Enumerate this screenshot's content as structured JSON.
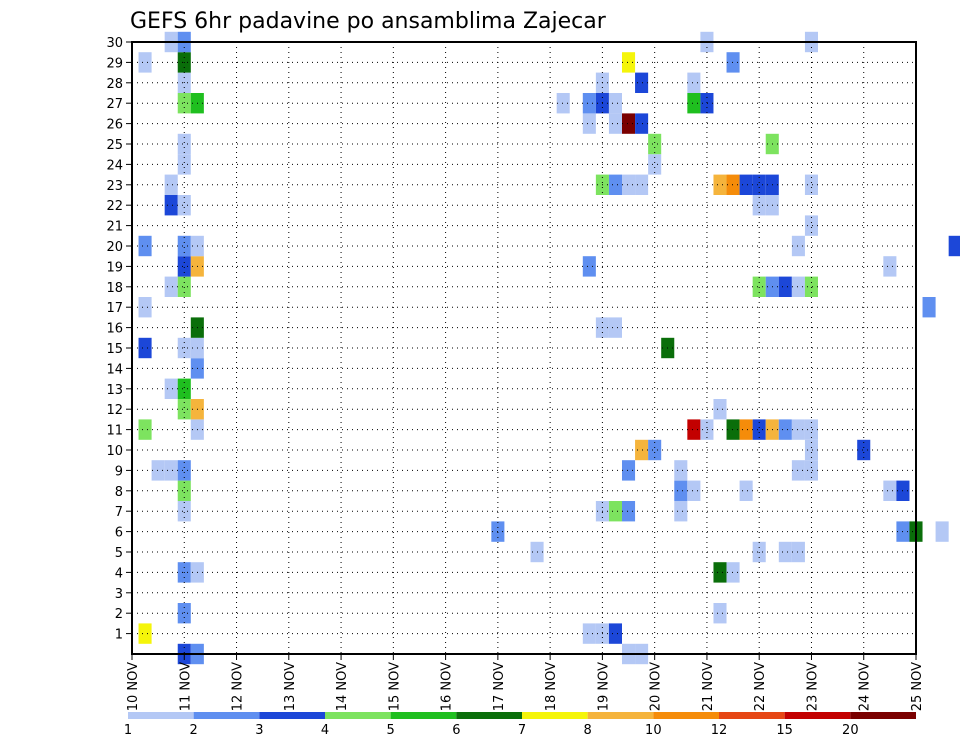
{
  "chart_data": {
    "type": "heatmap",
    "title": "GEFS 6hr padavine po ansamblima Zajecar",
    "x_labels": [
      "10 NOV",
      "11 NOV",
      "12 NOV",
      "13 NOV",
      "14 NOV",
      "15 NOV",
      "16 NOV",
      "17 NOV",
      "18 NOV",
      "19 NOV",
      "20 NOV",
      "21 NOV",
      "22 NOV",
      "23 NOV",
      "24 NOV",
      "25 NOV"
    ],
    "y_labels": [
      "1",
      "2",
      "3",
      "4",
      "5",
      "6",
      "7",
      "8",
      "9",
      "10",
      "11",
      "12",
      "13",
      "14",
      "15",
      "16",
      "17",
      "18",
      "19",
      "20",
      "21",
      "22",
      "23",
      "24",
      "25",
      "26",
      "27",
      "28",
      "29",
      "30"
    ],
    "x_range": [
      0,
      15
    ],
    "y_range": [
      0,
      30
    ],
    "grid": true,
    "colorbar": {
      "labels": [
        "1",
        "2",
        "3",
        "4",
        "5",
        "6",
        "7",
        "8",
        "10",
        "12",
        "15",
        "20"
      ],
      "colors": [
        "#b4c8f5",
        "#5f8ff0",
        "#1c47d8",
        "#7de35f",
        "#1fbf1f",
        "#0a6e0a",
        "#f5f50a",
        "#f5b43c",
        "#f58c0a",
        "#e64614",
        "#c30000",
        "#7a0000"
      ]
    },
    "cells": [
      {
        "m": 1,
        "t": 0.25,
        "c": 6
      },
      {
        "m": 1,
        "t": 8.75,
        "c": 0
      },
      {
        "m": 1,
        "t": 9.0,
        "c": 0
      },
      {
        "m": 1,
        "t": 9.25,
        "c": 2
      },
      {
        "m": 0,
        "t": 9.5,
        "c": 0
      },
      {
        "m": 0,
        "t": 9.75,
        "c": 0
      },
      {
        "m": 0,
        "t": 1.0,
        "c": 2
      },
      {
        "m": 0,
        "t": 1.25,
        "c": 1
      },
      {
        "m": 2,
        "t": 1.0,
        "c": 1
      },
      {
        "m": 2,
        "t": 11.25,
        "c": 0
      },
      {
        "m": 4,
        "t": 1.0,
        "c": 1
      },
      {
        "m": 4,
        "t": 1.25,
        "c": 0
      },
      {
        "m": 4,
        "t": 11.25,
        "c": 5
      },
      {
        "m": 4,
        "t": 11.5,
        "c": 0
      },
      {
        "m": 5,
        "t": 7.75,
        "c": 0
      },
      {
        "m": 5,
        "t": 12.0,
        "c": 0
      },
      {
        "m": 5,
        "t": 12.5,
        "c": 0
      },
      {
        "m": 5,
        "t": 12.75,
        "c": 0
      },
      {
        "m": 6,
        "t": 7.0,
        "c": 1
      },
      {
        "m": 6,
        "t": 14.75,
        "c": 1
      },
      {
        "m": 6,
        "t": 15.0,
        "c": 5
      },
      {
        "m": 6,
        "t": 15.5,
        "c": 0
      },
      {
        "m": 7,
        "t": 1.0,
        "c": 0
      },
      {
        "m": 7,
        "t": 9.0,
        "c": 0
      },
      {
        "m": 7,
        "t": 9.25,
        "c": 3
      },
      {
        "m": 7,
        "t": 9.5,
        "c": 1
      },
      {
        "m": 7,
        "t": 10.5,
        "c": 0
      },
      {
        "m": 8,
        "t": 1.0,
        "c": 3
      },
      {
        "m": 8,
        "t": 10.5,
        "c": 1
      },
      {
        "m": 8,
        "t": 10.75,
        "c": 0
      },
      {
        "m": 8,
        "t": 11.75,
        "c": 0
      },
      {
        "m": 8,
        "t": 14.5,
        "c": 0
      },
      {
        "m": 8,
        "t": 14.75,
        "c": 2
      },
      {
        "m": 9,
        "t": 0.5,
        "c": 0
      },
      {
        "m": 9,
        "t": 0.75,
        "c": 0
      },
      {
        "m": 9,
        "t": 1.0,
        "c": 1
      },
      {
        "m": 9,
        "t": 9.5,
        "c": 1
      },
      {
        "m": 9,
        "t": 10.5,
        "c": 0
      },
      {
        "m": 9,
        "t": 12.75,
        "c": 0
      },
      {
        "m": 9,
        "t": 13.0,
        "c": 0
      },
      {
        "m": 10,
        "t": 9.75,
        "c": 7
      },
      {
        "m": 10,
        "t": 10.0,
        "c": 1
      },
      {
        "m": 10,
        "t": 13.0,
        "c": 0
      },
      {
        "m": 10,
        "t": 14.0,
        "c": 2
      },
      {
        "m": 11,
        "t": 0.25,
        "c": 3
      },
      {
        "m": 11,
        "t": 1.25,
        "c": 0
      },
      {
        "m": 11,
        "t": 10.75,
        "c": 10
      },
      {
        "m": 11,
        "t": 11.0,
        "c": 0
      },
      {
        "m": 11,
        "t": 11.5,
        "c": 5
      },
      {
        "m": 11,
        "t": 11.75,
        "c": 8
      },
      {
        "m": 11,
        "t": 12.0,
        "c": 2
      },
      {
        "m": 11,
        "t": 12.25,
        "c": 7
      },
      {
        "m": 11,
        "t": 12.5,
        "c": 1
      },
      {
        "m": 11,
        "t": 12.75,
        "c": 0
      },
      {
        "m": 11,
        "t": 13.0,
        "c": 0
      },
      {
        "m": 12,
        "t": 1.0,
        "c": 3
      },
      {
        "m": 12,
        "t": 1.25,
        "c": 7
      },
      {
        "m": 12,
        "t": 11.25,
        "c": 0
      },
      {
        "m": 13,
        "t": 0.75,
        "c": 0
      },
      {
        "m": 13,
        "t": 1.0,
        "c": 4
      },
      {
        "m": 14,
        "t": 1.25,
        "c": 1
      },
      {
        "m": 15,
        "t": 0.25,
        "c": 2
      },
      {
        "m": 15,
        "t": 1.0,
        "c": 0
      },
      {
        "m": 15,
        "t": 1.25,
        "c": 0
      },
      {
        "m": 15,
        "t": 10.25,
        "c": 5
      },
      {
        "m": 16,
        "t": 9.0,
        "c": 0
      },
      {
        "m": 16,
        "t": 9.25,
        "c": 0
      },
      {
        "m": 16,
        "t": 1.25,
        "c": 5
      },
      {
        "m": 17,
        "t": 0.25,
        "c": 0
      },
      {
        "m": 17,
        "t": 15.25,
        "c": 1
      },
      {
        "m": 18,
        "t": 0.75,
        "c": 0
      },
      {
        "m": 18,
        "t": 1.0,
        "c": 3
      },
      {
        "m": 18,
        "t": 12.0,
        "c": 3
      },
      {
        "m": 18,
        "t": 12.25,
        "c": 1
      },
      {
        "m": 18,
        "t": 12.5,
        "c": 2
      },
      {
        "m": 18,
        "t": 12.75,
        "c": 0
      },
      {
        "m": 18,
        "t": 13.0,
        "c": 3
      },
      {
        "m": 19,
        "t": 1.0,
        "c": 2
      },
      {
        "m": 19,
        "t": 1.25,
        "c": 7
      },
      {
        "m": 19,
        "t": 8.75,
        "c": 1
      },
      {
        "m": 19,
        "t": 14.5,
        "c": 0
      },
      {
        "m": 20,
        "t": 0.25,
        "c": 1
      },
      {
        "m": 20,
        "t": 1.0,
        "c": 1
      },
      {
        "m": 20,
        "t": 1.25,
        "c": 0
      },
      {
        "m": 20,
        "t": 12.75,
        "c": 0
      },
      {
        "m": 20,
        "t": 15.75,
        "c": 2
      },
      {
        "m": 21,
        "t": 13.0,
        "c": 0
      },
      {
        "m": 22,
        "t": 0.75,
        "c": 2
      },
      {
        "m": 22,
        "t": 1.0,
        "c": 0
      },
      {
        "m": 22,
        "t": 12.0,
        "c": 0
      },
      {
        "m": 22,
        "t": 12.25,
        "c": 0
      },
      {
        "m": 23,
        "t": 0.75,
        "c": 0
      },
      {
        "m": 23,
        "t": 9.0,
        "c": 3
      },
      {
        "m": 23,
        "t": 9.25,
        "c": 1
      },
      {
        "m": 23,
        "t": 9.5,
        "c": 0
      },
      {
        "m": 23,
        "t": 9.75,
        "c": 0
      },
      {
        "m": 23,
        "t": 11.25,
        "c": 7
      },
      {
        "m": 23,
        "t": 11.5,
        "c": 8
      },
      {
        "m": 23,
        "t": 11.75,
        "c": 2
      },
      {
        "m": 23,
        "t": 12.0,
        "c": 2
      },
      {
        "m": 23,
        "t": 12.25,
        "c": 2
      },
      {
        "m": 23,
        "t": 13.0,
        "c": 0
      },
      {
        "m": 24,
        "t": 1.0,
        "c": 0
      },
      {
        "m": 24,
        "t": 10.0,
        "c": 0
      },
      {
        "m": 25,
        "t": 1.0,
        "c": 0
      },
      {
        "m": 25,
        "t": 10.0,
        "c": 3
      },
      {
        "m": 25,
        "t": 12.25,
        "c": 3
      },
      {
        "m": 26,
        "t": 8.75,
        "c": 0
      },
      {
        "m": 26,
        "t": 9.25,
        "c": 0
      },
      {
        "m": 26,
        "t": 9.5,
        "c": 11
      },
      {
        "m": 26,
        "t": 9.75,
        "c": 2
      },
      {
        "m": 27,
        "t": 1.0,
        "c": 3
      },
      {
        "m": 27,
        "t": 1.25,
        "c": 4
      },
      {
        "m": 27,
        "t": 8.25,
        "c": 0
      },
      {
        "m": 27,
        "t": 8.75,
        "c": 1
      },
      {
        "m": 27,
        "t": 9.0,
        "c": 2
      },
      {
        "m": 27,
        "t": 9.25,
        "c": 0
      },
      {
        "m": 27,
        "t": 10.75,
        "c": 4
      },
      {
        "m": 27,
        "t": 11.0,
        "c": 2
      },
      {
        "m": 28,
        "t": 1.0,
        "c": 0
      },
      {
        "m": 28,
        "t": 9.0,
        "c": 0
      },
      {
        "m": 28,
        "t": 9.75,
        "c": 2
      },
      {
        "m": 28,
        "t": 10.75,
        "c": 0
      },
      {
        "m": 29,
        "t": 0.25,
        "c": 0
      },
      {
        "m": 29,
        "t": 1.0,
        "c": 5
      },
      {
        "m": 29,
        "t": 9.5,
        "c": 6
      },
      {
        "m": 29,
        "t": 11.5,
        "c": 1
      },
      {
        "m": 30,
        "t": 0.75,
        "c": 0
      },
      {
        "m": 30,
        "t": 1.0,
        "c": 1
      },
      {
        "m": 30,
        "t": 11.0,
        "c": 0
      },
      {
        "m": 30,
        "t": 13.0,
        "c": 0
      }
    ]
  }
}
